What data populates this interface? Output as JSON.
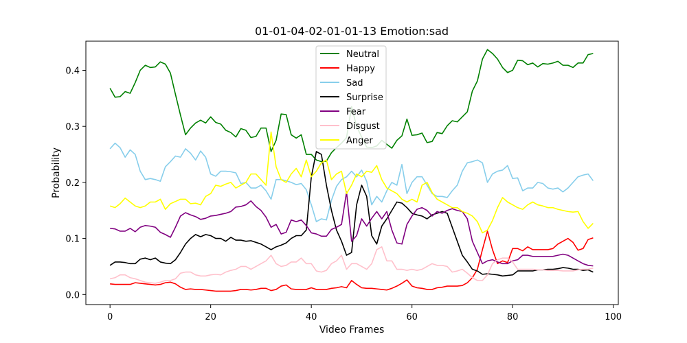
{
  "chart_data": {
    "type": "line",
    "title": "01-01-04-02-01-01-13 Emotion:sad",
    "xlabel": "Video Frames",
    "ylabel": "Probability",
    "xlim": [
      -4.8,
      101
    ],
    "ylim": [
      -0.018,
      0.452
    ],
    "xticks": [
      0,
      20,
      40,
      60,
      80,
      100
    ],
    "yticks": [
      0.0,
      0.1,
      0.2,
      0.3,
      0.4
    ],
    "ytick_labels": [
      "0.0",
      "0.1",
      "0.2",
      "0.3",
      "0.4"
    ],
    "grid": false,
    "legend_position": "upper center",
    "x": [
      0,
      1,
      2,
      3,
      4,
      5,
      6,
      7,
      8,
      9,
      10,
      11,
      12,
      13,
      14,
      15,
      16,
      17,
      18,
      19,
      20,
      21,
      22,
      23,
      24,
      25,
      26,
      27,
      28,
      29,
      30,
      31,
      32,
      33,
      34,
      35,
      36,
      37,
      38,
      39,
      40,
      41,
      42,
      43,
      44,
      45,
      46,
      47,
      48,
      49,
      50,
      51,
      52,
      53,
      54,
      55,
      56,
      57,
      58,
      59,
      60,
      61,
      62,
      63,
      64,
      65,
      66,
      67,
      68,
      69,
      70,
      71,
      72,
      73,
      74,
      75,
      76,
      77,
      78,
      79,
      80,
      81,
      82,
      83,
      84,
      85,
      86,
      87,
      88,
      89,
      90,
      91,
      92,
      93,
      94,
      95,
      96
    ],
    "series": [
      {
        "name": "Neutral",
        "color": "#008000",
        "values": [
          0.368,
          0.352,
          0.353,
          0.362,
          0.359,
          0.378,
          0.4,
          0.409,
          0.405,
          0.406,
          0.415,
          0.411,
          0.395,
          0.357,
          0.32,
          0.285,
          0.297,
          0.306,
          0.311,
          0.306,
          0.317,
          0.307,
          0.304,
          0.293,
          0.289,
          0.281,
          0.296,
          0.293,
          0.28,
          0.282,
          0.297,
          0.297,
          0.255,
          0.275,
          0.322,
          0.321,
          0.285,
          0.279,
          0.285,
          0.25,
          0.25,
          0.24,
          0.237,
          0.238,
          0.253,
          0.262,
          0.27,
          0.28,
          0.335,
          0.3,
          0.281,
          0.263,
          0.262,
          0.265,
          0.275,
          0.268,
          0.261,
          0.275,
          0.283,
          0.313,
          0.284,
          0.285,
          0.288,
          0.271,
          0.273,
          0.289,
          0.287,
          0.301,
          0.31,
          0.308,
          0.317,
          0.326,
          0.363,
          0.381,
          0.42,
          0.437,
          0.43,
          0.42,
          0.405,
          0.396,
          0.4,
          0.418,
          0.417,
          0.41,
          0.413,
          0.406,
          0.412,
          0.411,
          0.413,
          0.416,
          0.409,
          0.409,
          0.405,
          0.413,
          0.413,
          0.428,
          0.43
        ]
      },
      {
        "name": "Happy",
        "color": "#ff0000",
        "values": [
          0.019,
          0.018,
          0.018,
          0.018,
          0.018,
          0.021,
          0.02,
          0.019,
          0.018,
          0.017,
          0.018,
          0.021,
          0.022,
          0.019,
          0.013,
          0.009,
          0.01,
          0.009,
          0.009,
          0.008,
          0.007,
          0.006,
          0.006,
          0.006,
          0.006,
          0.007,
          0.009,
          0.009,
          0.008,
          0.009,
          0.011,
          0.011,
          0.007,
          0.009,
          0.015,
          0.017,
          0.01,
          0.009,
          0.009,
          0.009,
          0.012,
          0.009,
          0.009,
          0.009,
          0.011,
          0.012,
          0.014,
          0.012,
          0.025,
          0.018,
          0.012,
          0.011,
          0.011,
          0.01,
          0.009,
          0.008,
          0.011,
          0.015,
          0.02,
          0.026,
          0.015,
          0.012,
          0.011,
          0.009,
          0.009,
          0.012,
          0.013,
          0.015,
          0.015,
          0.015,
          0.016,
          0.021,
          0.03,
          0.045,
          0.08,
          0.113,
          0.08,
          0.055,
          0.06,
          0.057,
          0.082,
          0.082,
          0.078,
          0.085,
          0.08,
          0.08,
          0.08,
          0.08,
          0.082,
          0.09,
          0.095,
          0.1,
          0.093,
          0.079,
          0.082,
          0.098,
          0.101
        ]
      },
      {
        "name": "Sad",
        "color": "#87ceeb",
        "values": [
          0.26,
          0.27,
          0.262,
          0.245,
          0.258,
          0.25,
          0.22,
          0.205,
          0.207,
          0.205,
          0.202,
          0.228,
          0.237,
          0.247,
          0.245,
          0.26,
          0.252,
          0.24,
          0.256,
          0.245,
          0.215,
          0.211,
          0.22,
          0.22,
          0.219,
          0.217,
          0.198,
          0.2,
          0.19,
          0.19,
          0.195,
          0.185,
          0.17,
          0.205,
          0.205,
          0.203,
          0.2,
          0.196,
          0.198,
          0.187,
          0.16,
          0.13,
          0.135,
          0.133,
          0.168,
          0.193,
          0.205,
          0.21,
          0.22,
          0.21,
          0.222,
          0.202,
          0.16,
          0.175,
          0.165,
          0.185,
          0.2,
          0.195,
          0.232,
          0.18,
          0.2,
          0.21,
          0.21,
          0.195,
          0.18,
          0.175,
          0.175,
          0.173,
          0.185,
          0.195,
          0.22,
          0.235,
          0.237,
          0.24,
          0.235,
          0.2,
          0.215,
          0.22,
          0.222,
          0.23,
          0.207,
          0.208,
          0.185,
          0.19,
          0.19,
          0.2,
          0.198,
          0.19,
          0.188,
          0.19,
          0.183,
          0.19,
          0.2,
          0.21,
          0.213,
          0.215,
          0.203
        ]
      },
      {
        "name": "Surprise",
        "color": "#000000",
        "values": [
          0.052,
          0.058,
          0.058,
          0.057,
          0.055,
          0.055,
          0.063,
          0.065,
          0.062,
          0.065,
          0.058,
          0.056,
          0.055,
          0.062,
          0.075,
          0.09,
          0.1,
          0.107,
          0.103,
          0.107,
          0.105,
          0.1,
          0.1,
          0.095,
          0.102,
          0.097,
          0.097,
          0.095,
          0.096,
          0.093,
          0.09,
          0.085,
          0.08,
          0.085,
          0.088,
          0.092,
          0.1,
          0.105,
          0.105,
          0.115,
          0.21,
          0.255,
          0.25,
          0.195,
          0.15,
          0.115,
          0.095,
          0.07,
          0.075,
          0.16,
          0.195,
          0.175,
          0.105,
          0.09,
          0.122,
          0.135,
          0.15,
          0.165,
          0.163,
          0.155,
          0.145,
          0.142,
          0.14,
          0.135,
          0.142,
          0.145,
          0.148,
          0.145,
          0.12,
          0.095,
          0.07,
          0.058,
          0.045,
          0.042,
          0.036,
          0.037,
          0.036,
          0.035,
          0.033,
          0.034,
          0.035,
          0.042,
          0.042,
          0.042,
          0.042,
          0.044,
          0.044,
          0.045,
          0.045,
          0.046,
          0.048,
          0.047,
          0.045,
          0.045,
          0.043,
          0.044,
          0.04
        ]
      },
      {
        "name": "Fear",
        "color": "#800080",
        "values": [
          0.118,
          0.117,
          0.113,
          0.113,
          0.118,
          0.112,
          0.12,
          0.123,
          0.122,
          0.12,
          0.111,
          0.107,
          0.102,
          0.12,
          0.14,
          0.146,
          0.142,
          0.139,
          0.134,
          0.136,
          0.14,
          0.141,
          0.143,
          0.145,
          0.148,
          0.156,
          0.157,
          0.16,
          0.167,
          0.157,
          0.15,
          0.138,
          0.12,
          0.125,
          0.108,
          0.111,
          0.133,
          0.13,
          0.133,
          0.123,
          0.11,
          0.108,
          0.104,
          0.104,
          0.116,
          0.12,
          0.125,
          0.183,
          0.095,
          0.105,
          0.135,
          0.122,
          0.136,
          0.148,
          0.135,
          0.148,
          0.115,
          0.092,
          0.09,
          0.125,
          0.14,
          0.152,
          0.155,
          0.15,
          0.14,
          0.148,
          0.145,
          0.15,
          0.153,
          0.15,
          0.148,
          0.135,
          0.095,
          0.075,
          0.055,
          0.06,
          0.062,
          0.058,
          0.055,
          0.055,
          0.06,
          0.062,
          0.07,
          0.07,
          0.068,
          0.068,
          0.068,
          0.068,
          0.068,
          0.07,
          0.072,
          0.07,
          0.065,
          0.06,
          0.055,
          0.052,
          0.051
        ]
      },
      {
        "name": "Disgust",
        "color": "#ffc0cb",
        "values": [
          0.028,
          0.03,
          0.035,
          0.035,
          0.03,
          0.028,
          0.025,
          0.022,
          0.021,
          0.02,
          0.022,
          0.025,
          0.025,
          0.028,
          0.038,
          0.04,
          0.04,
          0.035,
          0.033,
          0.033,
          0.035,
          0.036,
          0.035,
          0.04,
          0.043,
          0.045,
          0.05,
          0.05,
          0.045,
          0.05,
          0.055,
          0.06,
          0.07,
          0.055,
          0.05,
          0.052,
          0.058,
          0.058,
          0.065,
          0.055,
          0.055,
          0.042,
          0.04,
          0.043,
          0.055,
          0.06,
          0.07,
          0.045,
          0.055,
          0.055,
          0.05,
          0.045,
          0.055,
          0.08,
          0.085,
          0.06,
          0.06,
          0.045,
          0.045,
          0.043,
          0.045,
          0.043,
          0.045,
          0.05,
          0.055,
          0.052,
          0.052,
          0.05,
          0.04,
          0.042,
          0.045,
          0.038,
          0.03,
          0.025,
          0.025,
          0.035,
          0.055,
          0.062,
          0.065,
          0.065,
          0.058,
          0.045,
          0.045,
          0.045,
          0.045,
          0.044,
          0.044,
          0.043,
          0.043,
          0.043,
          0.042,
          0.042,
          0.042,
          0.044,
          0.045,
          0.045,
          0.047
        ]
      },
      {
        "name": "Anger",
        "color": "#ffff00",
        "values": [
          0.158,
          0.155,
          0.162,
          0.172,
          0.165,
          0.158,
          0.155,
          0.158,
          0.165,
          0.165,
          0.17,
          0.152,
          0.162,
          0.166,
          0.17,
          0.17,
          0.162,
          0.163,
          0.16,
          0.175,
          0.18,
          0.195,
          0.193,
          0.197,
          0.2,
          0.19,
          0.195,
          0.2,
          0.215,
          0.215,
          0.205,
          0.195,
          0.29,
          0.228,
          0.205,
          0.2,
          0.215,
          0.225,
          0.21,
          0.24,
          0.21,
          0.22,
          0.235,
          0.24,
          0.205,
          0.215,
          0.22,
          0.18,
          0.195,
          0.215,
          0.21,
          0.22,
          0.218,
          0.23,
          0.205,
          0.19,
          0.185,
          0.18,
          0.17,
          0.165,
          0.17,
          0.165,
          0.195,
          0.2,
          0.182,
          0.17,
          0.165,
          0.16,
          0.155,
          0.155,
          0.148,
          0.145,
          0.14,
          0.13,
          0.11,
          0.115,
          0.132,
          0.155,
          0.173,
          0.165,
          0.16,
          0.155,
          0.152,
          0.16,
          0.165,
          0.16,
          0.158,
          0.155,
          0.155,
          0.152,
          0.15,
          0.148,
          0.147,
          0.148,
          0.13,
          0.118,
          0.127
        ]
      }
    ]
  }
}
